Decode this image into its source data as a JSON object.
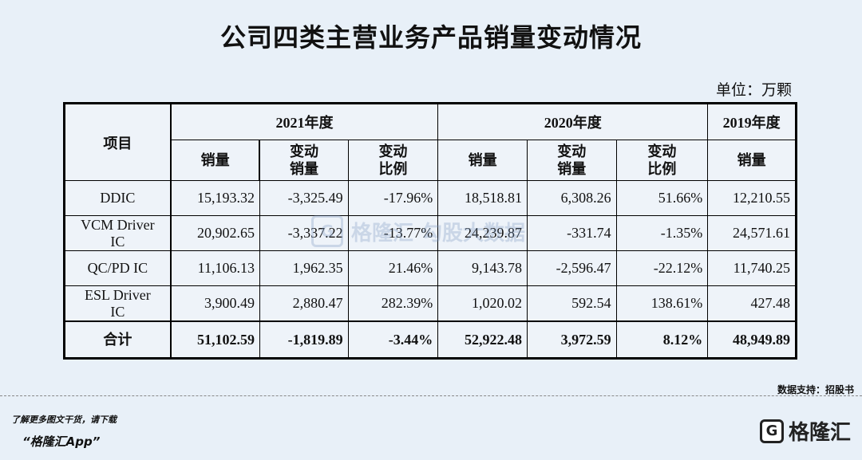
{
  "title": "公司四类主营业务产品销量变动情况",
  "unit": "单位：万颗",
  "table": {
    "item_header": "项目",
    "year_groups": [
      "2021年度",
      "2020年度",
      "2019年度"
    ],
    "sub_headers": {
      "sales": "销量",
      "change_sales": [
        "变动",
        "销量"
      ],
      "change_ratio": [
        "变动",
        "比例"
      ]
    },
    "rows": [
      {
        "name": [
          "DDIC"
        ],
        "values": [
          "15,193.32",
          "-3,325.49",
          "-17.96%",
          "18,518.81",
          "6,308.26",
          "51.66%",
          "12,210.55"
        ]
      },
      {
        "name": [
          "VCM Driver",
          "IC"
        ],
        "values": [
          "20,902.65",
          "-3,337.22",
          "-13.77%",
          "24,239.87",
          "-331.74",
          "-1.35%",
          "24,571.61"
        ]
      },
      {
        "name": [
          "QC/PD IC"
        ],
        "values": [
          "11,106.13",
          "1,962.35",
          "21.46%",
          "9,143.78",
          "-2,596.47",
          "-22.12%",
          "11,740.25"
        ]
      },
      {
        "name": [
          "ESL Driver",
          "IC"
        ],
        "values": [
          "3,900.49",
          "2,880.47",
          "282.39%",
          "1,020.02",
          "592.54",
          "138.61%",
          "427.48"
        ]
      }
    ],
    "total": {
      "name": "合计",
      "values": [
        "51,102.59",
        "-1,819.89",
        "-3.44%",
        "52,922.48",
        "3,972.59",
        "8.12%",
        "48,949.89"
      ]
    }
  },
  "watermark": {
    "logo_char": "G",
    "brand": "格隆汇",
    "brand2": "勾股大数据"
  },
  "source": "数据支持：招股书",
  "promo": {
    "line1": "了解更多图文干货，请下载",
    "line2": "“格隆汇App”"
  },
  "brand_logo": {
    "icon": "G",
    "name": "格隆汇"
  }
}
